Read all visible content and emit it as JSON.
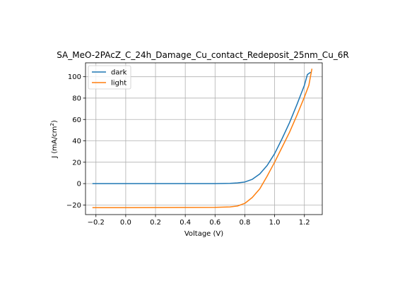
{
  "chart_data": {
    "type": "line",
    "title": "SA_MeO-2PAcZ_C_24h_Damage_Cu_contact_Redeposit_25nm_Cu_6R",
    "xlabel": "Voltage (V)",
    "ylabel_main": "J (mA/cm",
    "ylabel_sup": "2",
    "ylabel_close": ")",
    "xlim": [
      -0.27,
      1.32
    ],
    "ylim": [
      -29,
      113
    ],
    "x_ticks": [
      -0.2,
      0.0,
      0.2,
      0.4,
      0.6,
      0.8,
      1.0,
      1.2
    ],
    "x_tick_labels": [
      "−0.2",
      "0.0",
      "0.2",
      "0.4",
      "0.6",
      "0.8",
      "1.0",
      "1.2"
    ],
    "y_ticks": [
      -20,
      0,
      20,
      40,
      60,
      80,
      100
    ],
    "y_tick_labels": [
      "−20",
      "0",
      "20",
      "40",
      "60",
      "80",
      "100"
    ],
    "grid": true,
    "legend_position": "upper-left",
    "series": [
      {
        "name": "dark",
        "color": "#1f77b4",
        "x": [
          -0.22,
          0.0,
          0.2,
          0.4,
          0.6,
          0.7,
          0.75,
          0.8,
          0.85,
          0.9,
          0.95,
          1.0,
          1.05,
          1.1,
          1.15,
          1.2,
          1.22,
          1.24
        ],
        "y": [
          0,
          0,
          0,
          0,
          0,
          0.2,
          0.6,
          1.5,
          4,
          9,
          17,
          28,
          42,
          57,
          74,
          92,
          102,
          104
        ]
      },
      {
        "name": "light",
        "color": "#ff7f0e",
        "x": [
          -0.22,
          0.0,
          0.2,
          0.4,
          0.6,
          0.7,
          0.75,
          0.8,
          0.85,
          0.9,
          0.95,
          1.0,
          1.05,
          1.1,
          1.15,
          1.2,
          1.23,
          1.25
        ],
        "y": [
          -22.5,
          -22.5,
          -22.4,
          -22.3,
          -22.2,
          -21.8,
          -21,
          -18.5,
          -13,
          -5,
          7,
          20,
          34,
          48,
          64,
          81,
          92,
          107
        ]
      }
    ]
  }
}
